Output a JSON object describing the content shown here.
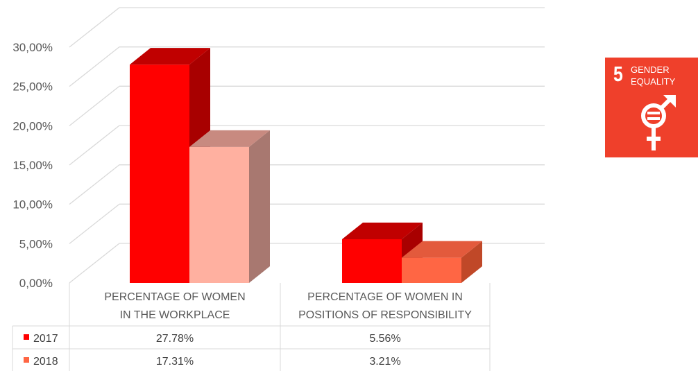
{
  "chart_data": {
    "type": "bar",
    "categories": [
      [
        "PERCENTAGE OF WOMEN",
        "IN THE WORKPLACE"
      ],
      [
        "PERCENTAGE OF WOMEN IN",
        "POSITIONS OF RESPONSIBILITY"
      ]
    ],
    "series": [
      {
        "name": "2017",
        "values": [
          27.78,
          5.56
        ],
        "value_labels": [
          "27.78%",
          "5.56%"
        ],
        "color": "#ff0000",
        "side_color": "#a80000",
        "top_color": "#c00000"
      },
      {
        "name": "2018",
        "values": [
          17.31,
          3.21
        ],
        "value_labels": [
          "17.31%",
          "3.21%"
        ],
        "colors": [
          "#ffb0a0",
          "#ff6644"
        ],
        "side_colors": [
          "#a87870",
          "#c04828"
        ],
        "top_colors": [
          "#c88a80",
          "#e35a3c"
        ]
      }
    ],
    "y_ticks": [
      "0,00%",
      "5,00%",
      "10,00%",
      "15,00%",
      "20,00%",
      "25,00%",
      "30,00%"
    ],
    "ylim": [
      0,
      30
    ],
    "grid": true,
    "legend": "data-table",
    "title": "",
    "xlabel": "",
    "ylabel": ""
  },
  "logo": {
    "number": "5",
    "line1": "GENDER",
    "line2": "EQUALITY",
    "icon": "gender-equality-icon",
    "color": "#ef402b"
  }
}
